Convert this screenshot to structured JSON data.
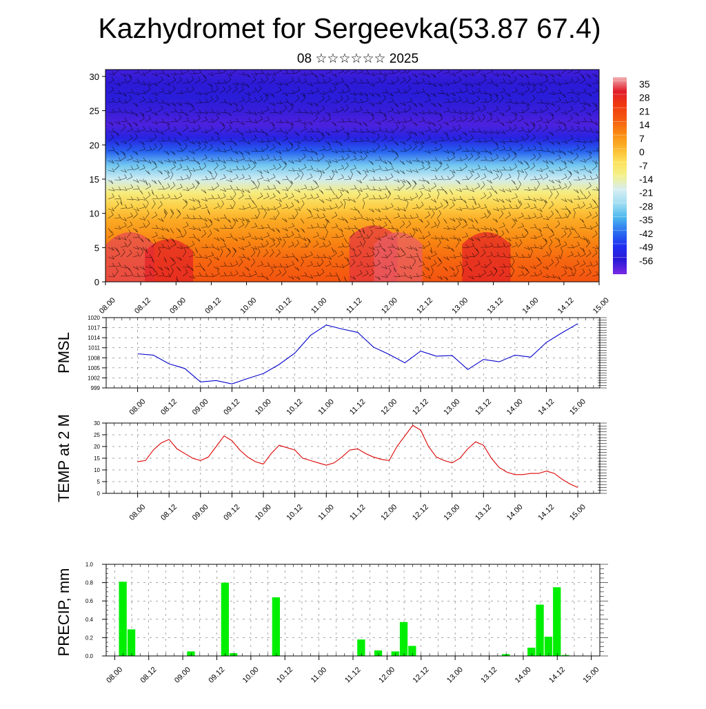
{
  "header": {
    "title": "Kazhydromet for Sergeevka(53.87 67.4)",
    "subtitle": "08 ☆☆☆☆☆☆ 2025"
  },
  "colors": {
    "pmsl_line": "#0000cc",
    "temp_line": "#dd0000",
    "precip_bar": "#00ee00",
    "wind_barb": "#000000"
  },
  "chart_data": [
    {
      "type": "heatmap",
      "name": "vertical-section",
      "title": "",
      "xlabel": "",
      "ylabel": "",
      "x_ticks": [
        "08.00",
        "08.12",
        "09.00",
        "09.12",
        "10.00",
        "10.12",
        "11.00",
        "11.12",
        "12.00",
        "12.12",
        "13.00",
        "13.12",
        "14.00",
        "14.12",
        "15.00"
      ],
      "y_ticks": [
        0,
        5,
        10,
        15,
        20,
        25,
        30
      ],
      "ylim": [
        0,
        31
      ],
      "colorbar_labels": [
        35,
        28,
        21,
        14,
        7,
        0,
        -7,
        -14,
        -21,
        -28,
        -35,
        -42,
        -49,
        -56
      ],
      "colorbar_colors": [
        "#f2b2b6",
        "#e11c2a",
        "#f03a10",
        "#f55a10",
        "#f98a12",
        "#fbb42a",
        "#fde25a",
        "#f3f08c",
        "#d6eef2",
        "#9fdcf2",
        "#4ab6ee",
        "#2a6ef0",
        "#2030f0",
        "#2a1ad6",
        "#7a2ae6"
      ],
      "layers": [
        {
          "level": 0,
          "temp": 18
        },
        {
          "level": 3,
          "temp": 15
        },
        {
          "level": 6,
          "temp": 10
        },
        {
          "level": 9,
          "temp": 4
        },
        {
          "level": 11,
          "temp": -2
        },
        {
          "level": 13,
          "temp": -10
        },
        {
          "level": 15,
          "temp": -20
        },
        {
          "level": 17,
          "temp": -30
        },
        {
          "level": 19,
          "temp": -42
        },
        {
          "level": 21,
          "temp": -52
        },
        {
          "level": 23,
          "temp": -58
        },
        {
          "level": 25,
          "temp": -56
        },
        {
          "level": 27,
          "temp": -54
        },
        {
          "level": 29,
          "temp": -55
        },
        {
          "level": 31,
          "temp": -57
        }
      ],
      "warm_cores": [
        {
          "x": 0.7,
          "top": 8,
          "peak": 33
        },
        {
          "x": 1.8,
          "top": 7,
          "peak": 30
        },
        {
          "x": 7.6,
          "top": 9,
          "peak": 32
        },
        {
          "x": 8.3,
          "top": 8,
          "peak": 34
        },
        {
          "x": 10.8,
          "top": 8,
          "peak": 30
        }
      ]
    },
    {
      "type": "line",
      "name": "pmsl",
      "ylabel": "PMSL",
      "x_ticks": [
        "08.00",
        "08.12",
        "09.00",
        "09.12",
        "10.00",
        "10.12",
        "11.00",
        "11.12",
        "12.00",
        "12.12",
        "13.00",
        "13.12",
        "14.00",
        "14.12",
        "15.00"
      ],
      "y_ticks": [
        999,
        1002,
        1005,
        1008,
        1011,
        1014,
        1017,
        1020
      ],
      "ylim": [
        999,
        1020
      ],
      "xlim": [
        -1,
        14.7
      ],
      "x": [
        0,
        0.5,
        1,
        1.5,
        2,
        2.5,
        3,
        3.5,
        4,
        4.5,
        5,
        5.5,
        6,
        6.5,
        7,
        7.5,
        8,
        8.5,
        9,
        9.5,
        10,
        10.5,
        11,
        11.5,
        12,
        12.5,
        13,
        13.5,
        14
      ],
      "values": [
        1009.2,
        1008.8,
        1006.2,
        1004.8,
        1000.8,
        1001.2,
        1000.2,
        1001.8,
        1003.3,
        1006.0,
        1009.4,
        1014.7,
        1017.8,
        1016.6,
        1015.6,
        1011.2,
        1009.0,
        1006.5,
        1010.0,
        1008.5,
        1008.7,
        1004.5,
        1007.5,
        1006.8,
        1008.8,
        1008.2,
        1012.6,
        1015.5,
        1018.2
      ]
    },
    {
      "type": "line",
      "name": "temp-2m",
      "ylabel": "TEMP at 2 M",
      "x_ticks": [
        "08.00",
        "08.12",
        "09.00",
        "09.12",
        "10.00",
        "10.12",
        "11.00",
        "11.12",
        "12.00",
        "12.12",
        "13.00",
        "13.12",
        "14.00",
        "14.12",
        "15.00"
      ],
      "y_ticks": [
        0,
        5,
        10,
        15,
        20,
        25,
        30
      ],
      "ylim": [
        0,
        30
      ],
      "xlim": [
        -1,
        14.7
      ],
      "x": [
        0,
        0.25,
        0.5,
        0.75,
        1,
        1.25,
        1.5,
        1.75,
        2,
        2.25,
        2.5,
        2.75,
        3,
        3.25,
        3.5,
        3.75,
        4,
        4.25,
        4.5,
        4.75,
        5,
        5.25,
        5.5,
        5.75,
        6,
        6.25,
        6.5,
        6.75,
        7,
        7.25,
        7.5,
        7.75,
        8,
        8.25,
        8.5,
        8.75,
        9,
        9.25,
        9.5,
        9.75,
        10,
        10.25,
        10.5,
        10.75,
        11,
        11.25,
        11.5,
        11.75,
        12,
        12.25,
        12.5,
        12.75,
        13,
        13.25,
        13.5,
        13.75,
        14
      ],
      "values": [
        13.5,
        14.0,
        18.5,
        21.5,
        23.0,
        19.0,
        17.0,
        15.0,
        14.0,
        15.5,
        20.0,
        24.5,
        22.5,
        18.5,
        15.5,
        13.5,
        12.5,
        17.0,
        20.5,
        19.5,
        18.5,
        15.0,
        14.0,
        13.0,
        12.0,
        13.0,
        15.5,
        18.5,
        19.0,
        17.0,
        15.5,
        14.5,
        14.0,
        20.0,
        24.5,
        29.0,
        27.0,
        20.0,
        15.5,
        14.0,
        13.0,
        15.0,
        19.0,
        22.0,
        20.5,
        15.0,
        11.0,
        9.0,
        8.0,
        8.0,
        8.5,
        8.5,
        9.5,
        8.5,
        6.0,
        4.0,
        2.5
      ]
    },
    {
      "type": "bar",
      "name": "precip",
      "ylabel": "PRECIP, mm",
      "x_ticks": [
        "08.00",
        "08.12",
        "09.00",
        "09.12",
        "10.00",
        "10.12",
        "11.00",
        "11.12",
        "12.00",
        "12.12",
        "13.00",
        "13.12",
        "14.00",
        "14.12",
        "15.00"
      ],
      "y_ticks": [
        "0.0",
        "0.2",
        "0.4",
        "0.6",
        "0.8",
        "1.0"
      ],
      "ylim": [
        0,
        1.0
      ],
      "xlim": [
        -0.25,
        14.25
      ],
      "x": [
        0.25,
        0.5,
        2.25,
        3.25,
        3.5,
        4.75,
        7.25,
        7.75,
        8.25,
        8.5,
        8.75,
        11.5,
        12.25,
        12.5,
        12.75,
        13.0,
        13.25
      ],
      "values": [
        0.81,
        0.29,
        0.05,
        0.8,
        0.03,
        0.64,
        0.18,
        0.06,
        0.05,
        0.37,
        0.11,
        0.02,
        0.09,
        0.56,
        0.21,
        0.75,
        0.01
      ]
    }
  ]
}
